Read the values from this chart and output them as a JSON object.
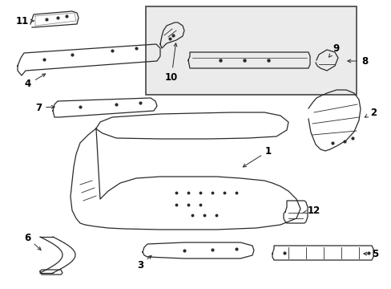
{
  "bg_color": "#ffffff",
  "line_color": "#2a2a2a",
  "label_color": "#000000",
  "inset_bg": "#ebebeb",
  "inset_border": "#444444",
  "figsize": [
    4.89,
    3.6
  ],
  "dpi": 100
}
